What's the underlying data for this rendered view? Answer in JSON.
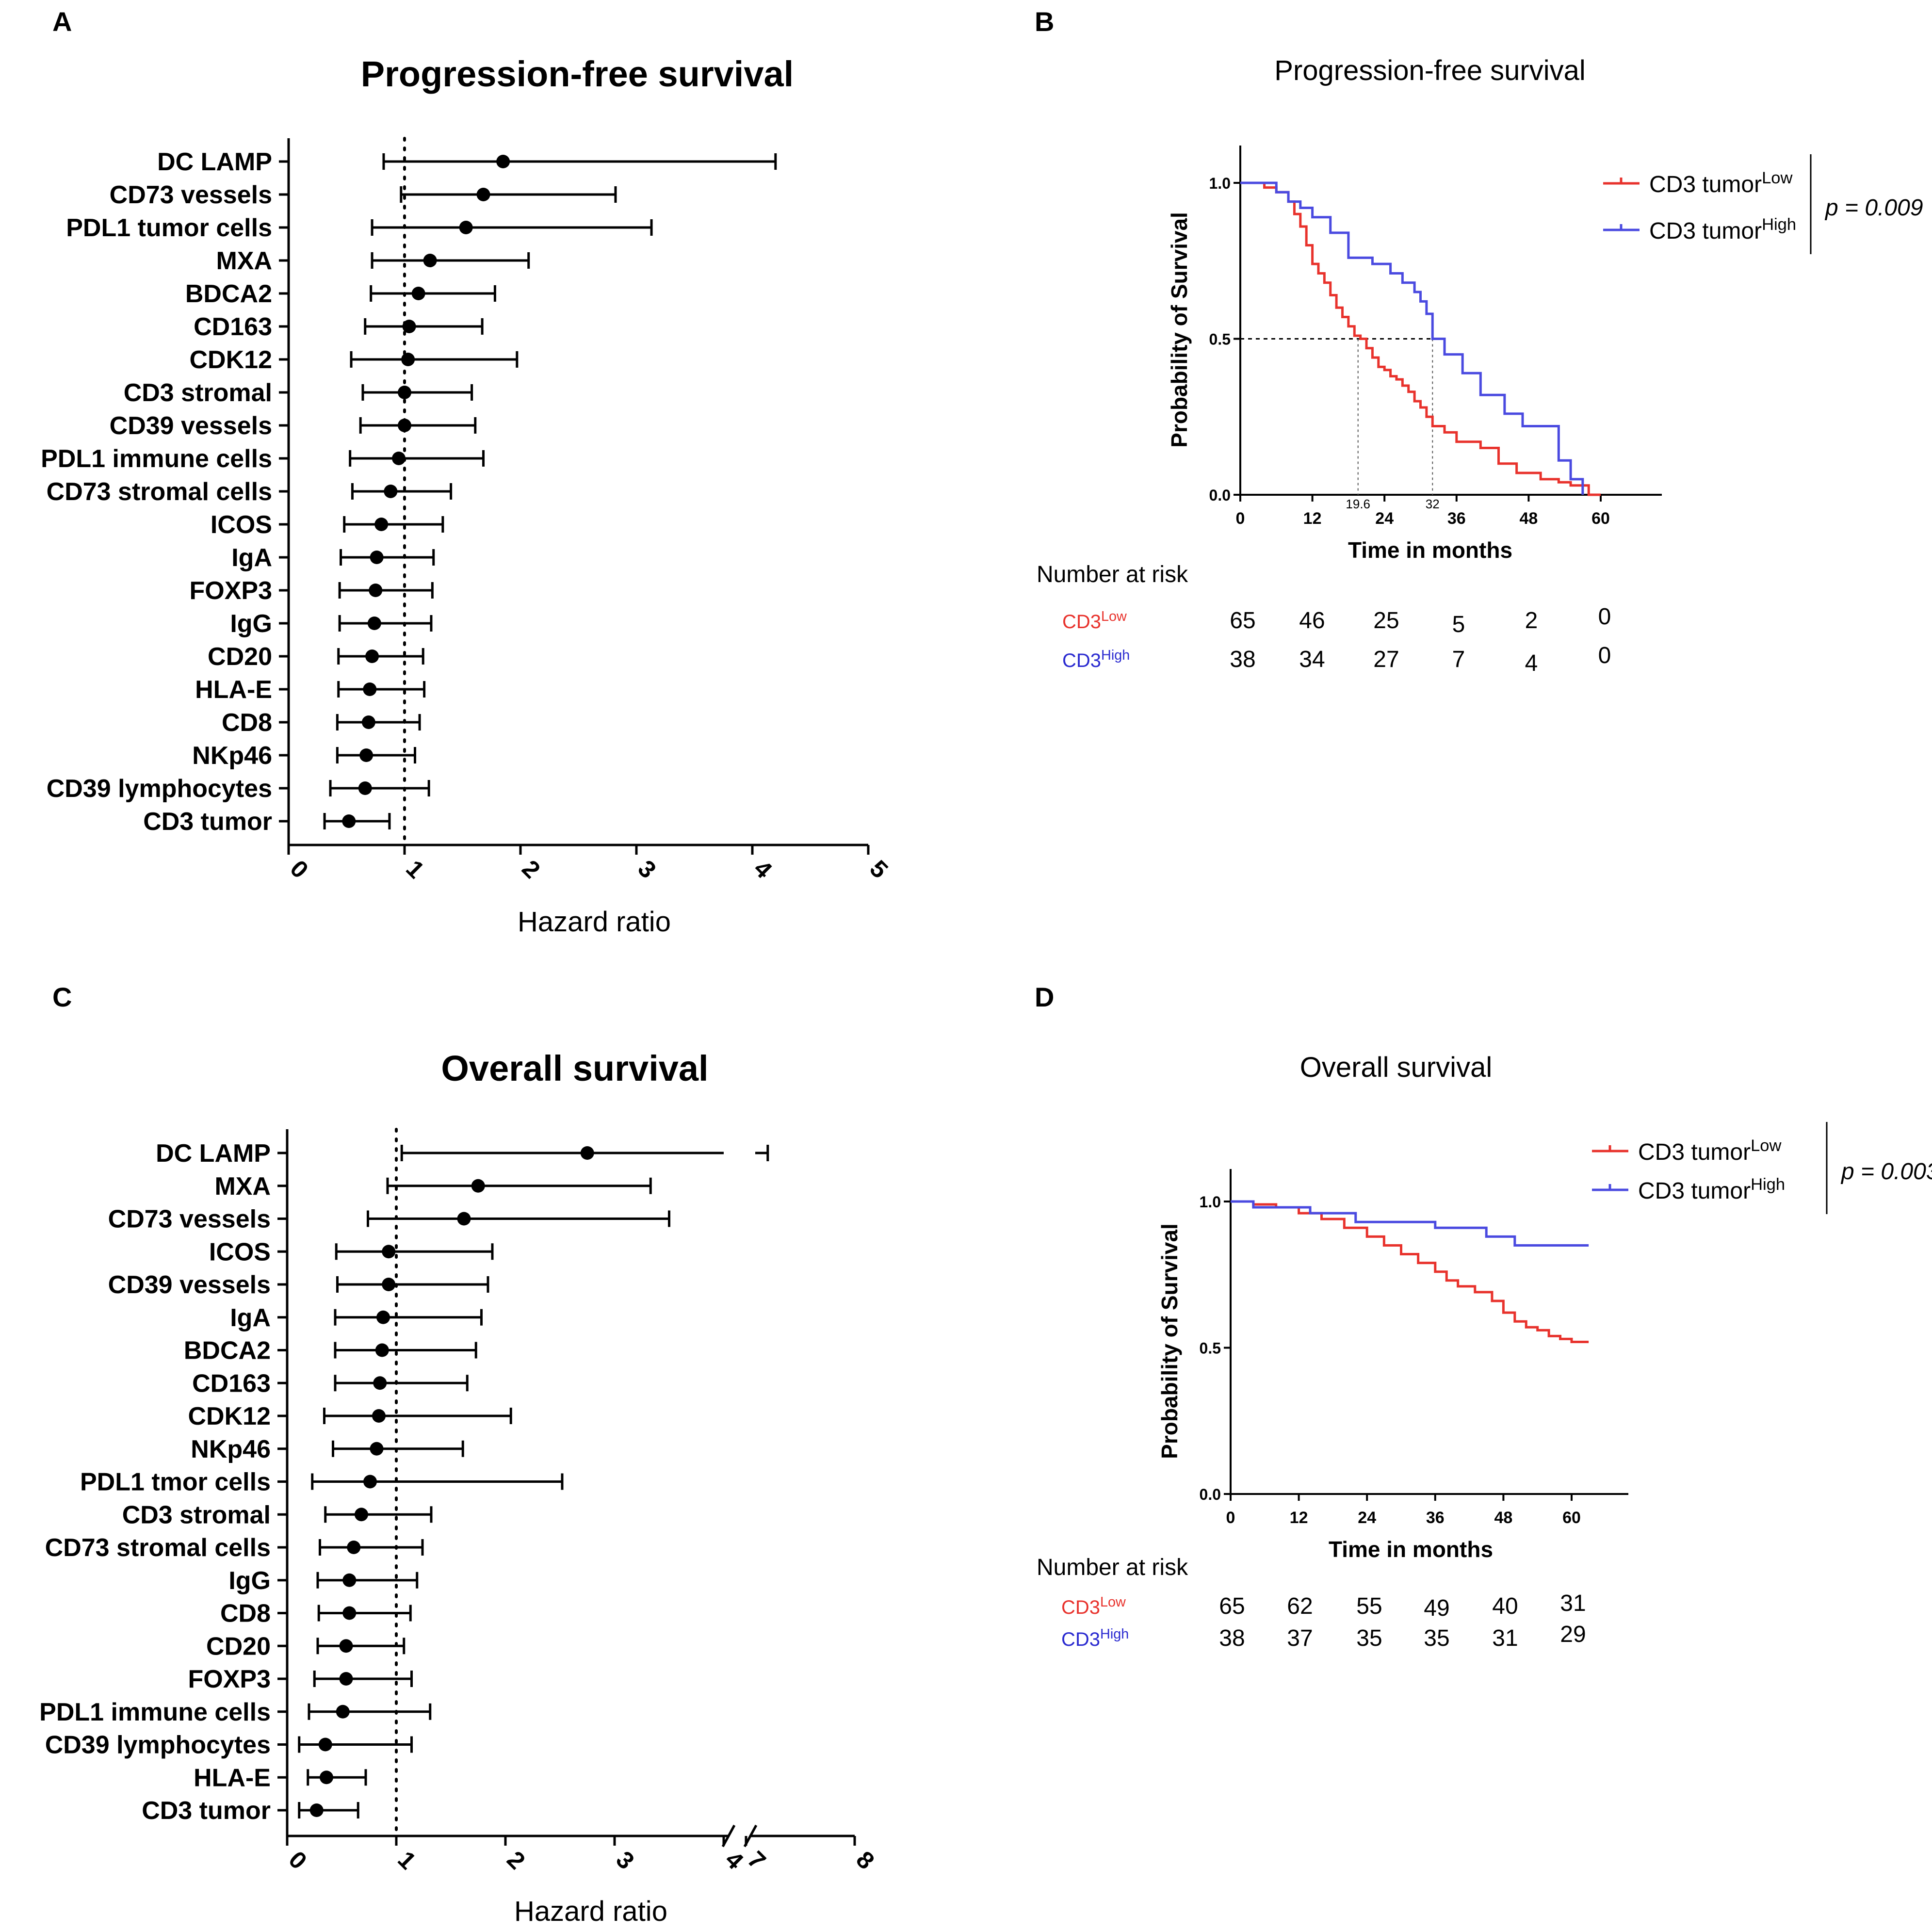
{
  "chart_data": [
    {
      "panel": "A",
      "type": "forest",
      "title": "Progression-free survival",
      "xlabel": "Hazard ratio",
      "xlim": [
        0,
        5
      ],
      "xticks": [
        "0",
        "1",
        "2",
        "3",
        "4",
        "5"
      ],
      "reference_line": 1,
      "rows": [
        {
          "label": "DC LAMP",
          "hr": 1.85,
          "lo": 0.82,
          "hi": 4.2
        },
        {
          "label": "CD73 vessels",
          "hr": 1.68,
          "lo": 0.97,
          "hi": 2.82
        },
        {
          "label": "PDL1 tumor cells",
          "hr": 1.53,
          "lo": 0.72,
          "hi": 3.13
        },
        {
          "label": "MXA",
          "hr": 1.22,
          "lo": 0.72,
          "hi": 2.07
        },
        {
          "label": "BDCA2",
          "hr": 1.12,
          "lo": 0.71,
          "hi": 1.78
        },
        {
          "label": "CD163",
          "hr": 1.04,
          "lo": 0.66,
          "hi": 1.67
        },
        {
          "label": "CDK12",
          "hr": 1.03,
          "lo": 0.54,
          "hi": 1.97
        },
        {
          "label": "CD3 stromal",
          "hr": 1.0,
          "lo": 0.64,
          "hi": 1.58
        },
        {
          "label": "CD39 vessels",
          "hr": 1.0,
          "lo": 0.62,
          "hi": 1.61
        },
        {
          "label": "PDL1 immune cells",
          "hr": 0.95,
          "lo": 0.53,
          "hi": 1.68
        },
        {
          "label": "CD73 stromal cells",
          "hr": 0.88,
          "lo": 0.55,
          "hi": 1.4
        },
        {
          "label": "ICOS",
          "hr": 0.8,
          "lo": 0.48,
          "hi": 1.33
        },
        {
          "label": "IgA",
          "hr": 0.76,
          "lo": 0.45,
          "hi": 1.25
        },
        {
          "label": "FOXP3",
          "hr": 0.75,
          "lo": 0.44,
          "hi": 1.24
        },
        {
          "label": "IgG",
          "hr": 0.74,
          "lo": 0.44,
          "hi": 1.23
        },
        {
          "label": "CD20",
          "hr": 0.72,
          "lo": 0.43,
          "hi": 1.16
        },
        {
          "label": "HLA-E",
          "hr": 0.7,
          "lo": 0.43,
          "hi": 1.17
        },
        {
          "label": "CD8",
          "hr": 0.69,
          "lo": 0.42,
          "hi": 1.13
        },
        {
          "label": "NKp46",
          "hr": 0.67,
          "lo": 0.42,
          "hi": 1.09
        },
        {
          "label": "CD39 lymphocytes",
          "hr": 0.66,
          "lo": 0.36,
          "hi": 1.21
        },
        {
          "label": "CD3 tumor",
          "hr": 0.52,
          "lo": 0.31,
          "hi": 0.87
        }
      ]
    },
    {
      "panel": "B",
      "type": "line",
      "subtype": "kaplan-meier",
      "title": "Progression-free survival",
      "xlabel": "Time in months",
      "ylabel": "Probability of Survival",
      "xlim": [
        0,
        60
      ],
      "ylim": [
        0,
        1
      ],
      "xticks": [
        "0",
        "12",
        "24",
        "36",
        "48",
        "60"
      ],
      "yticks": [
        "0.0",
        "0.5",
        "1.0"
      ],
      "median_labels": [
        "19.6",
        "32"
      ],
      "medians": [
        19.6,
        32
      ],
      "pvalue": "p = 0.009",
      "legend": {
        "position": "top-right",
        "entries": [
          {
            "base": "CD3 tumor",
            "sup": "Low",
            "color": "#e8322c"
          },
          {
            "base": "CD3 tumor",
            "sup": "High",
            "color": "#4a4ae0"
          }
        ]
      },
      "series": [
        {
          "name": "CD3 tumorLow",
          "color": "#e8322c",
          "x": [
            0,
            2,
            4,
            6,
            8,
            9,
            10,
            11,
            12,
            13,
            14,
            15,
            16,
            17,
            18,
            19,
            20,
            21,
            22,
            23,
            24,
            25,
            26,
            27,
            28,
            29,
            30,
            31,
            32,
            34,
            36,
            40,
            43,
            46,
            50,
            53,
            55,
            58,
            60
          ],
          "y": [
            1.0,
            1.0,
            0.985,
            0.97,
            0.94,
            0.9,
            0.86,
            0.8,
            0.74,
            0.71,
            0.68,
            0.64,
            0.6,
            0.57,
            0.54,
            0.51,
            0.5,
            0.47,
            0.44,
            0.41,
            0.4,
            0.38,
            0.37,
            0.35,
            0.33,
            0.3,
            0.28,
            0.25,
            0.22,
            0.2,
            0.17,
            0.15,
            0.1,
            0.07,
            0.05,
            0.04,
            0.03,
            0.0,
            0.0
          ]
        },
        {
          "name": "CD3 tumorHigh",
          "color": "#4a4ae0",
          "x": [
            0,
            3,
            6,
            8,
            10,
            12,
            15,
            18,
            22,
            25,
            27,
            29,
            30,
            31,
            32,
            34,
            37,
            40,
            44,
            47,
            50,
            53,
            55,
            57
          ],
          "y": [
            1.0,
            1.0,
            0.97,
            0.94,
            0.92,
            0.89,
            0.84,
            0.76,
            0.74,
            0.71,
            0.68,
            0.65,
            0.62,
            0.58,
            0.5,
            0.45,
            0.39,
            0.32,
            0.26,
            0.22,
            0.22,
            0.11,
            0.05,
            0.0
          ]
        }
      ],
      "risk_table": {
        "header": "Number at risk",
        "rows": [
          {
            "base": "CD3",
            "sup": "Low",
            "color": "#e8322c",
            "values": [
              "65",
              "46",
              "25",
              "5",
              "2",
              "0"
            ]
          },
          {
            "base": "CD3",
            "sup": "High",
            "color": "#2a2ad0",
            "values": [
              "38",
              "34",
              "27",
              "7",
              "4",
              "0"
            ]
          }
        ]
      }
    },
    {
      "panel": "C",
      "type": "forest",
      "title": "Overall survival",
      "xlabel": "Hazard ratio",
      "xlim": [
        0,
        4
      ],
      "axis_break": {
        "after": 4,
        "resume": 7,
        "end": 8
      },
      "xticks": [
        "0",
        "1",
        "2",
        "3",
        "4",
        "7",
        "8"
      ],
      "reference_line": 1,
      "rows": [
        {
          "label": "DC LAMP",
          "hr": 2.75,
          "lo": 1.05,
          "hi": 7.2
        },
        {
          "label": "MXA",
          "hr": 1.75,
          "lo": 0.92,
          "hi": 3.33
        },
        {
          "label": "CD73 vessels",
          "hr": 1.62,
          "lo": 0.74,
          "hi": 3.5
        },
        {
          "label": "ICOS",
          "hr": 0.93,
          "lo": 0.45,
          "hi": 1.88
        },
        {
          "label": "CD39 vessels",
          "hr": 0.93,
          "lo": 0.46,
          "hi": 1.84
        },
        {
          "label": "IgA",
          "hr": 0.88,
          "lo": 0.44,
          "hi": 1.78
        },
        {
          "label": "BDCA2",
          "hr": 0.87,
          "lo": 0.44,
          "hi": 1.73
        },
        {
          "label": "CD163",
          "hr": 0.85,
          "lo": 0.44,
          "hi": 1.65
        },
        {
          "label": "CDK12",
          "hr": 0.84,
          "lo": 0.34,
          "hi": 2.05
        },
        {
          "label": "NKp46",
          "hr": 0.82,
          "lo": 0.42,
          "hi": 1.61
        },
        {
          "label": "PDL1 tmor cells",
          "hr": 0.76,
          "lo": 0.23,
          "hi": 2.52
        },
        {
          "label": "CD3 stromal",
          "hr": 0.68,
          "lo": 0.35,
          "hi": 1.32
        },
        {
          "label": "CD73 stromal cells",
          "hr": 0.61,
          "lo": 0.3,
          "hi": 1.24
        },
        {
          "label": "IgG",
          "hr": 0.57,
          "lo": 0.28,
          "hi": 1.19
        },
        {
          "label": "CD8",
          "hr": 0.57,
          "lo": 0.29,
          "hi": 1.13
        },
        {
          "label": "CD20",
          "hr": 0.54,
          "lo": 0.28,
          "hi": 1.07
        },
        {
          "label": "FOXP3",
          "hr": 0.54,
          "lo": 0.25,
          "hi": 1.14
        },
        {
          "label": "PDL1 immune cells",
          "hr": 0.51,
          "lo": 0.2,
          "hi": 1.31
        },
        {
          "label": "CD39 lymphocytes",
          "hr": 0.35,
          "lo": 0.11,
          "hi": 1.14
        },
        {
          "label": "HLA-E",
          "hr": 0.36,
          "lo": 0.19,
          "hi": 0.72
        },
        {
          "label": "CD3 tumor",
          "hr": 0.27,
          "lo": 0.11,
          "hi": 0.65
        }
      ]
    },
    {
      "panel": "D",
      "type": "line",
      "subtype": "kaplan-meier",
      "title": "Overall survival",
      "xlabel": "Time in months",
      "ylabel": "Probability of Survival",
      "xlim": [
        0,
        60
      ],
      "ylim": [
        0,
        1
      ],
      "xticks": [
        "0",
        "12",
        "24",
        "36",
        "48",
        "60"
      ],
      "yticks": [
        "0.0",
        "0.5",
        "1.0"
      ],
      "pvalue": "p = 0.003",
      "legend": {
        "position": "top-right",
        "entries": [
          {
            "base": "CD3 tumor",
            "sup": "Low",
            "color": "#e8322c"
          },
          {
            "base": "CD3 tumor",
            "sup": "High",
            "color": "#4a4ae0"
          }
        ]
      },
      "series": [
        {
          "name": "CD3 tumorLow",
          "color": "#e8322c",
          "x": [
            0,
            4,
            8,
            12,
            16,
            20,
            24,
            27,
            30,
            33,
            36,
            38,
            40,
            43,
            46,
            48,
            50,
            52,
            54,
            56,
            58,
            60,
            63
          ],
          "y": [
            1.0,
            0.99,
            0.98,
            0.96,
            0.94,
            0.91,
            0.88,
            0.85,
            0.82,
            0.79,
            0.76,
            0.73,
            0.71,
            0.69,
            0.66,
            0.62,
            0.59,
            0.57,
            0.56,
            0.54,
            0.53,
            0.52,
            0.52
          ]
        },
        {
          "name": "CD3 tumorHigh",
          "color": "#4a4ae0",
          "x": [
            0,
            4,
            14,
            22,
            36,
            45,
            50,
            62,
            63
          ],
          "y": [
            1.0,
            0.98,
            0.96,
            0.93,
            0.91,
            0.88,
            0.85,
            0.85,
            0.85
          ]
        }
      ],
      "risk_table": {
        "header": "Number at risk",
        "rows": [
          {
            "base": "CD3",
            "sup": "Low",
            "color": "#e8322c",
            "values": [
              "65",
              "62",
              "55",
              "49",
              "40",
              "31"
            ]
          },
          {
            "base": "CD3",
            "sup": "High",
            "color": "#2a2ad0",
            "values": [
              "38",
              "37",
              "35",
              "35",
              "31",
              "29"
            ]
          }
        ]
      }
    }
  ]
}
